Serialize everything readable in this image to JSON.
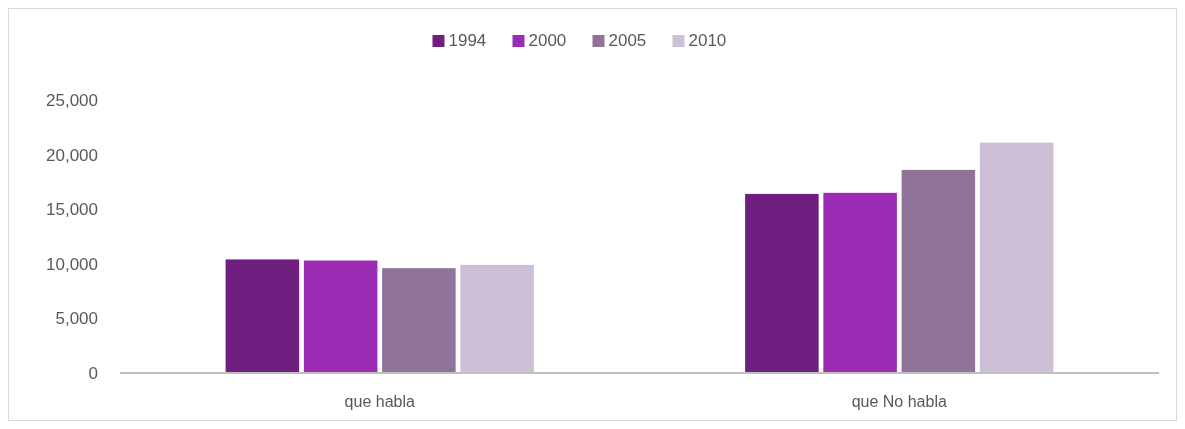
{
  "chart_data": {
    "type": "bar",
    "categories": [
      "que habla",
      "que No habla"
    ],
    "series": [
      {
        "name": "1994",
        "color": "#6e1f80",
        "values": [
          10400,
          16400
        ]
      },
      {
        "name": "2000",
        "color": "#9b2db5",
        "values": [
          10300,
          16500
        ]
      },
      {
        "name": "2005",
        "color": "#8f7399",
        "values": [
          9600,
          18600
        ]
      },
      {
        "name": "2010",
        "color": "#cdbfd6",
        "values": [
          9900,
          21100
        ]
      }
    ],
    "ylim": [
      0,
      25000
    ],
    "yticks": [
      {
        "value": 0,
        "label": "0"
      },
      {
        "value": 5000,
        "label": "5,000"
      },
      {
        "value": 10000,
        "label": "10,000"
      },
      {
        "value": 15000,
        "label": "15,000"
      },
      {
        "value": 20000,
        "label": "20,000"
      },
      {
        "value": 25000,
        "label": "25,000"
      }
    ],
    "legend": "top",
    "grid": false
  }
}
